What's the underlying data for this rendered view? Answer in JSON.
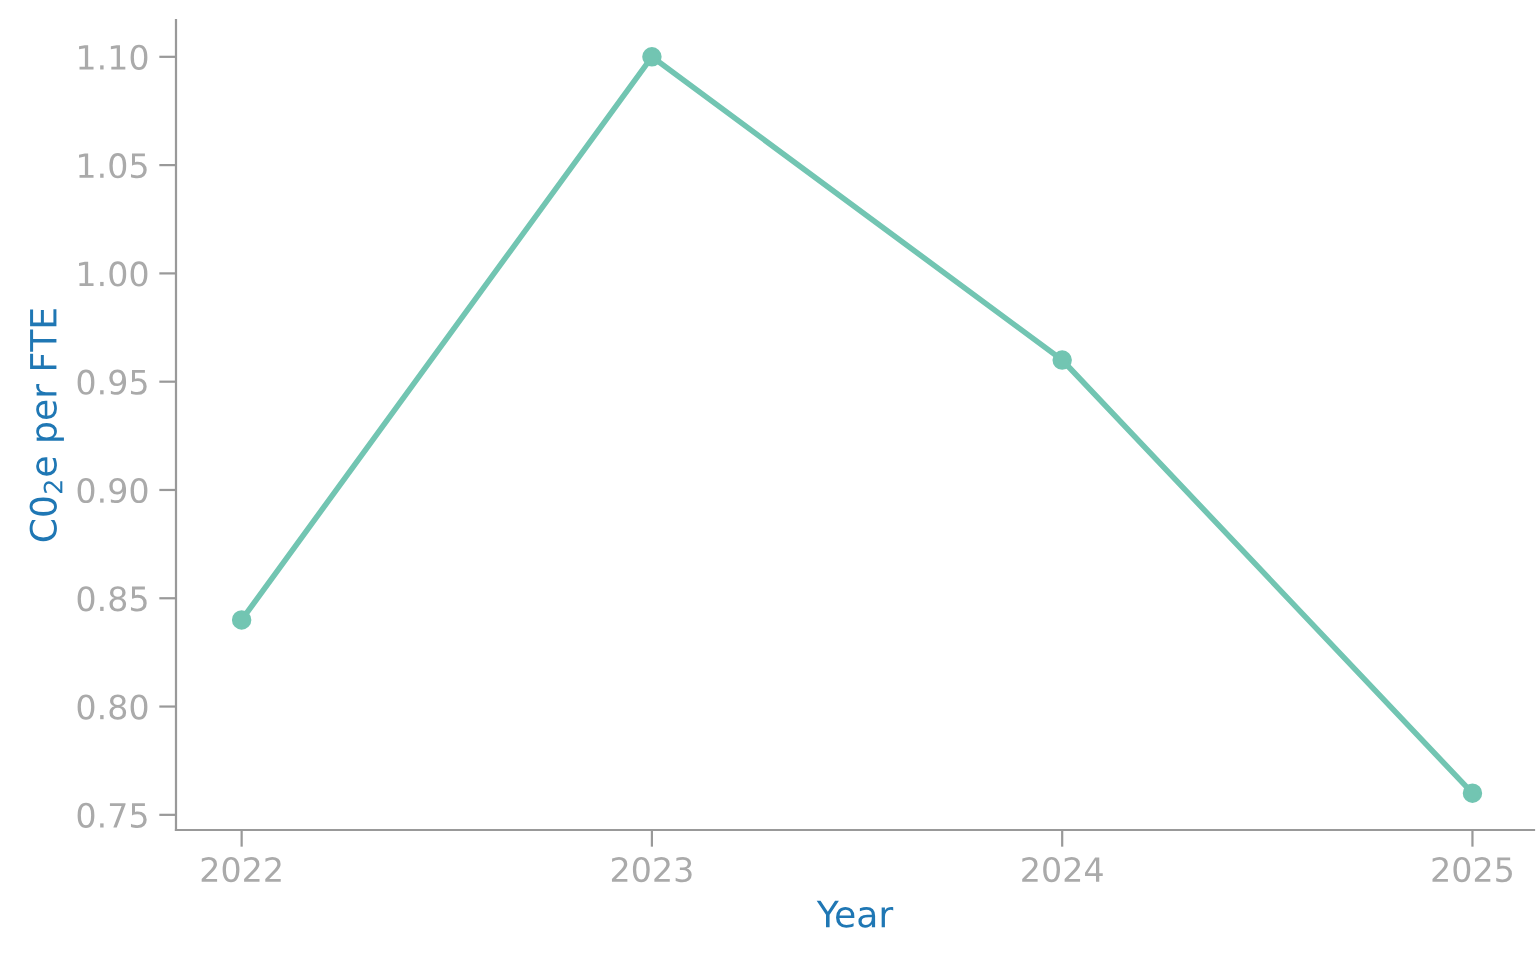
{
  "chart_data": {
    "type": "line",
    "xlabel": "Year",
    "ylabel": "C0$_{2}$e per FTE",
    "x": [
      2022,
      2023,
      2024,
      2025
    ],
    "series": [
      {
        "color": "#72c5b2",
        "values": [
          0.84,
          1.1,
          0.96,
          0.76
        ]
      }
    ],
    "xlim": [
      2021.84,
      2025.15
    ],
    "xticks": [
      2022,
      2023,
      2024,
      2025
    ],
    "ylim": [
      0.743,
      1.117
    ],
    "yticks": [
      {
        "value": 0.75,
        "label": "0.75"
      },
      {
        "value": 0.8,
        "label": "0.80"
      },
      {
        "value": 0.85,
        "label": "0.85"
      },
      {
        "value": 0.9,
        "label": "0.90"
      },
      {
        "value": 0.95,
        "label": "0.95"
      },
      {
        "value": 1.0,
        "label": "1.00"
      },
      {
        "value": 1.05,
        "label": "1.05"
      },
      {
        "value": 1.1,
        "label": "1.10"
      }
    ],
    "marker": "circle",
    "line_style": "solid"
  }
}
